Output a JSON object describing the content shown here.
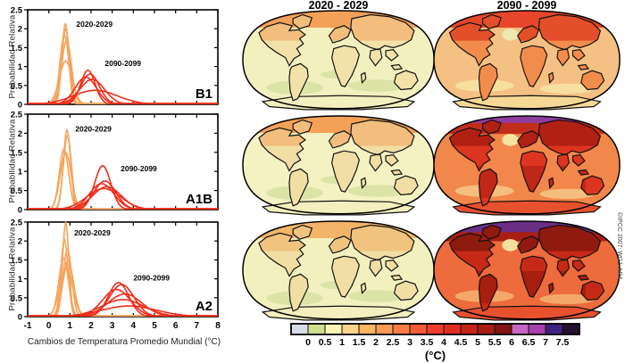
{
  "figure": {
    "y_axis_label": "Probabilidad Relativa",
    "x_axis_label": "Cambios de Temperatura Promedio Mundial (°C)",
    "credit": "©IPCC 2007: WG1-AR4",
    "map_col_titles": [
      "2020 - 2029",
      "2090 - 2099"
    ]
  },
  "curve_colors": {
    "orange": "#F6A45C",
    "red": "#EE2E1B"
  },
  "chart_data": [
    {
      "type": "line",
      "panel_label": "B1",
      "xlabel": "Cambios de Temperatura Promedio Mundial (°C)",
      "ylabel": "Probabilidad Relativa",
      "xlim": [
        -1,
        8
      ],
      "ylim": [
        0,
        2.5
      ],
      "x_ticks": [
        "-1",
        "0",
        "1",
        "2",
        "3",
        "4",
        "5",
        "6",
        "7",
        "8"
      ],
      "y_ticks": [
        "0",
        "0.5",
        "1",
        "1.5",
        "2",
        "2.5"
      ],
      "grid": false,
      "series": [
        {
          "name": "2020-2029",
          "color_key": "orange",
          "curves": [
            {
              "peak_x": 0.78,
              "peak_y": 2.15,
              "sigma": 0.16
            },
            {
              "peak_x": 0.8,
              "peak_y": 2.0,
              "sigma": 0.19
            },
            {
              "peak_x": 0.74,
              "peak_y": 1.85,
              "sigma": 0.21
            },
            {
              "peak_x": 0.84,
              "peak_y": 1.7,
              "sigma": 0.23
            },
            {
              "peak_x": 0.8,
              "peak_y": 1.15,
              "sigma": 0.3
            }
          ]
        },
        {
          "name": "2090-2099",
          "color_key": "red",
          "curves": [
            {
              "peak_x": 1.85,
              "peak_y": 0.9,
              "sigma": 0.34
            },
            {
              "peak_x": 1.95,
              "peak_y": 0.8,
              "sigma": 0.44
            },
            {
              "peak_x": 1.75,
              "peak_y": 0.72,
              "sigma": 0.5
            },
            {
              "peak_x": 2.05,
              "peak_y": 0.66,
              "sigma": 0.58
            },
            {
              "peak_x": 2.2,
              "peak_y": 0.37,
              "sigma": 1.05
            }
          ]
        }
      ],
      "annotations": [
        {
          "text": "2020-2029",
          "x": 1.3,
          "y": 2.05
        },
        {
          "text": "2090-2099",
          "x": 2.65,
          "y": 1.02
        }
      ]
    },
    {
      "type": "line",
      "panel_label": "A1B",
      "xlabel": "Cambios de Temperatura Promedio Mundial (°C)",
      "ylabel": "Probabilidad Relativa",
      "xlim": [
        -1,
        8
      ],
      "ylim": [
        0,
        2.5
      ],
      "x_ticks": [
        "-1",
        "0",
        "1",
        "2",
        "3",
        "4",
        "5",
        "6",
        "7",
        "8"
      ],
      "y_ticks": [
        "0",
        "0.5",
        "1",
        "1.5",
        "2",
        "2.5"
      ],
      "grid": false,
      "series": [
        {
          "name": "2020-2029",
          "color_key": "orange",
          "curves": [
            {
              "peak_x": 0.86,
              "peak_y": 2.1,
              "sigma": 0.17
            },
            {
              "peak_x": 0.88,
              "peak_y": 1.95,
              "sigma": 0.19
            },
            {
              "peak_x": 0.72,
              "peak_y": 1.6,
              "sigma": 0.22
            },
            {
              "peak_x": 0.8,
              "peak_y": 1.5,
              "sigma": 0.26
            }
          ]
        },
        {
          "name": "2090-2099",
          "color_key": "red",
          "curves": [
            {
              "peak_x": 2.55,
              "peak_y": 1.15,
              "sigma": 0.38
            },
            {
              "peak_x": 2.65,
              "peak_y": 0.75,
              "sigma": 0.52
            },
            {
              "peak_x": 2.5,
              "peak_y": 0.68,
              "sigma": 0.58
            },
            {
              "peak_x": 2.75,
              "peak_y": 0.6,
              "sigma": 0.68
            },
            {
              "peak_x": 2.6,
              "peak_y": 0.55,
              "sigma": 0.8
            }
          ]
        }
      ],
      "annotations": [
        {
          "text": "2020-2029",
          "x": 1.25,
          "y": 2.05
        },
        {
          "text": "2090-2099",
          "x": 3.4,
          "y": 1.0
        }
      ]
    },
    {
      "type": "line",
      "panel_label": "A2",
      "xlabel": "Cambios de Temperatura Promedio Mundial (°C)",
      "ylabel": "Probabilidad Relativa",
      "xlim": [
        -1,
        8
      ],
      "ylim": [
        0,
        2.5
      ],
      "x_ticks": [
        "-1",
        "0",
        "1",
        "2",
        "3",
        "4",
        "5",
        "6",
        "7",
        "8"
      ],
      "y_ticks": [
        "0",
        "0.5",
        "1",
        "1.5",
        "2",
        "2.5"
      ],
      "grid": false,
      "series": [
        {
          "name": "2020-2029",
          "color_key": "orange",
          "curves": [
            {
              "peak_x": 0.8,
              "peak_y": 2.5,
              "sigma": 0.15
            },
            {
              "peak_x": 0.74,
              "peak_y": 2.05,
              "sigma": 0.17
            },
            {
              "peak_x": 0.88,
              "peak_y": 1.8,
              "sigma": 0.2
            },
            {
              "peak_x": 0.7,
              "peak_y": 1.55,
              "sigma": 0.23
            },
            {
              "peak_x": 0.92,
              "peak_y": 1.45,
              "sigma": 0.26
            },
            {
              "peak_x": 0.82,
              "peak_y": 1.3,
              "sigma": 0.3
            }
          ]
        },
        {
          "name": "2090-2099",
          "color_key": "red",
          "curves": [
            {
              "peak_x": 3.3,
              "peak_y": 0.9,
              "sigma": 0.48
            },
            {
              "peak_x": 3.45,
              "peak_y": 0.85,
              "sigma": 0.58
            },
            {
              "peak_x": 3.2,
              "peak_y": 0.72,
              "sigma": 0.66
            },
            {
              "peak_x": 3.6,
              "peak_y": 0.6,
              "sigma": 0.8
            },
            {
              "peak_x": 3.5,
              "peak_y": 0.45,
              "sigma": 1.0
            },
            {
              "peak_x": 3.8,
              "peak_y": 0.28,
              "sigma": 1.3
            }
          ]
        }
      ],
      "annotations": [
        {
          "text": "2020-2029",
          "x": 1.2,
          "y": 2.15
        },
        {
          "text": "2090-2099",
          "x": 4.0,
          "y": 0.95
        }
      ]
    }
  ],
  "colorbar": {
    "unit_label": "(°C)",
    "tick_labels": [
      "0",
      "0.5",
      "1",
      "1.5",
      "2",
      "2.5",
      "3",
      "3.5",
      "4",
      "4.5",
      "5",
      "5.5",
      "6",
      "6.5",
      "7",
      "7.5"
    ],
    "cell_colors": [
      "#D7DCEA",
      "#CFDF8B",
      "#F9F6B6",
      "#F8D58A",
      "#FBB660",
      "#FA9B55",
      "#F97C47",
      "#F45B36",
      "#EE3D2B",
      "#E02D1F",
      "#C52418",
      "#A81D12",
      "#7F150C",
      "#C767C5",
      "#A840AD",
      "#3F2380",
      "#23102E"
    ]
  },
  "maps": {
    "b1_2020": {
      "scenario": "B1",
      "period": "2020 - 2029",
      "ocean": "#F3F0C0",
      "south_patch": "#DBE4A6",
      "arctic": "#F3A159",
      "land": "#F2E2AA",
      "north_land": "#F2BD7D",
      "antarctica": "#F3EFBE"
    },
    "b1_2090": {
      "scenario": "B1",
      "period": "2090 - 2099",
      "ocean": "#F5C083",
      "south_patch": "#F7DFA0",
      "arctic": "#E8462B",
      "land": "#F28C4D",
      "north_land": "#E44F2B",
      "antarctica": "#F6D896",
      "atlantic_spot": "#EDE7B0"
    },
    "a1b_2020": {
      "scenario": "A1B",
      "period": "2020 - 2029",
      "ocean": "#F4F1C2",
      "south_patch": "#DBE4A6",
      "arctic": "#F3A159",
      "land": "#F1DEA5",
      "north_land": "#F2BD7D",
      "antarctica": "#F3EFBE"
    },
    "a1b_2090": {
      "scenario": "A1B",
      "period": "2090 - 2099",
      "ocean": "#F1874A",
      "south_patch": "#F5BE7E",
      "arctic": "#C22D1B",
      "land": "#DC3520",
      "north_land": "#B02114",
      "tropic_land": "#C02718",
      "polar_cap": "#8E3D9E",
      "atlantic_spot": "#F6E3A2",
      "antarctica": "#E8512E"
    },
    "a2_2020": {
      "scenario": "A2",
      "period": "2020 - 2029",
      "ocean": "#F3F0C0",
      "south_patch": "#DBE4A6",
      "arctic": "#F2B468",
      "land": "#F1DEA5",
      "north_land": "#F0C47F",
      "antarctica": "#F3EFBE"
    },
    "a2_2090": {
      "scenario": "A2",
      "period": "2090 - 2099",
      "ocean": "#ED6B3C",
      "south_patch": "#F3A869",
      "arctic": "#A81E12",
      "land": "#C62A17",
      "north_land": "#8F1A0E",
      "tropic_land": "#A61F10",
      "polar_cap": "#6B2F86",
      "atlantic_spot": "#F5E09E",
      "antarctica": "#E8512E"
    }
  }
}
